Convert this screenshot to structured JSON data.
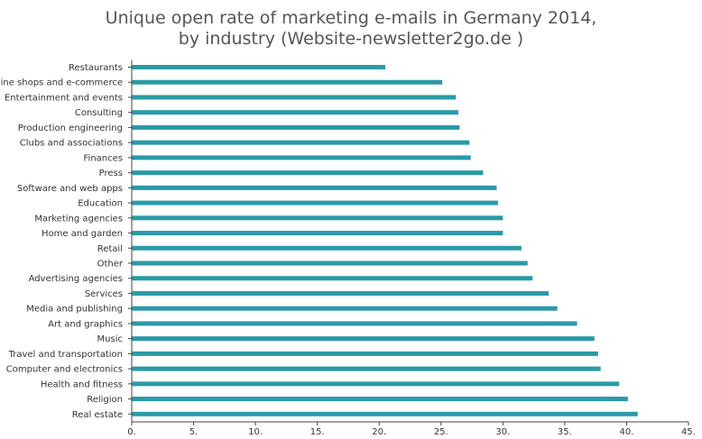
{
  "chart_data": {
    "type": "bar",
    "orientation": "horizontal",
    "title": "Unique open rate of marketing e-mails in Germany 2014,",
    "subtitle": "by industry (Website-newsletter2go.de )",
    "xlabel": "",
    "ylabel": "",
    "xlim": [
      0,
      45
    ],
    "x_ticks": [
      "0.",
      "5.",
      "10.",
      "15.",
      "20.",
      "25.",
      "30.",
      "35.",
      "40.",
      "45."
    ],
    "grid": false,
    "legend": "none",
    "bar_color": "#2a9aa8",
    "categories": [
      "Restaurants",
      "Online shops and e-commerce",
      "Entertainment and events",
      "Consulting",
      "Production engineering",
      "Clubs and associations",
      "Finances",
      "Press",
      "Software and web apps",
      "Education",
      "Marketing agencies",
      "Home and garden",
      "Retail",
      "Other",
      "Advertising agencies",
      "Services",
      "Media and publishing",
      "Art and graphics",
      "Music",
      "Travel and transportation",
      "Computer and electronics",
      "Health and fitness",
      "Religion",
      "Real estate"
    ],
    "values": [
      20.5,
      25.1,
      26.2,
      26.4,
      26.5,
      27.3,
      27.4,
      28.4,
      29.5,
      29.6,
      30.0,
      30.0,
      31.5,
      32.0,
      32.4,
      33.7,
      34.4,
      36.0,
      37.4,
      37.7,
      37.9,
      39.4,
      40.1,
      40.9
    ]
  }
}
